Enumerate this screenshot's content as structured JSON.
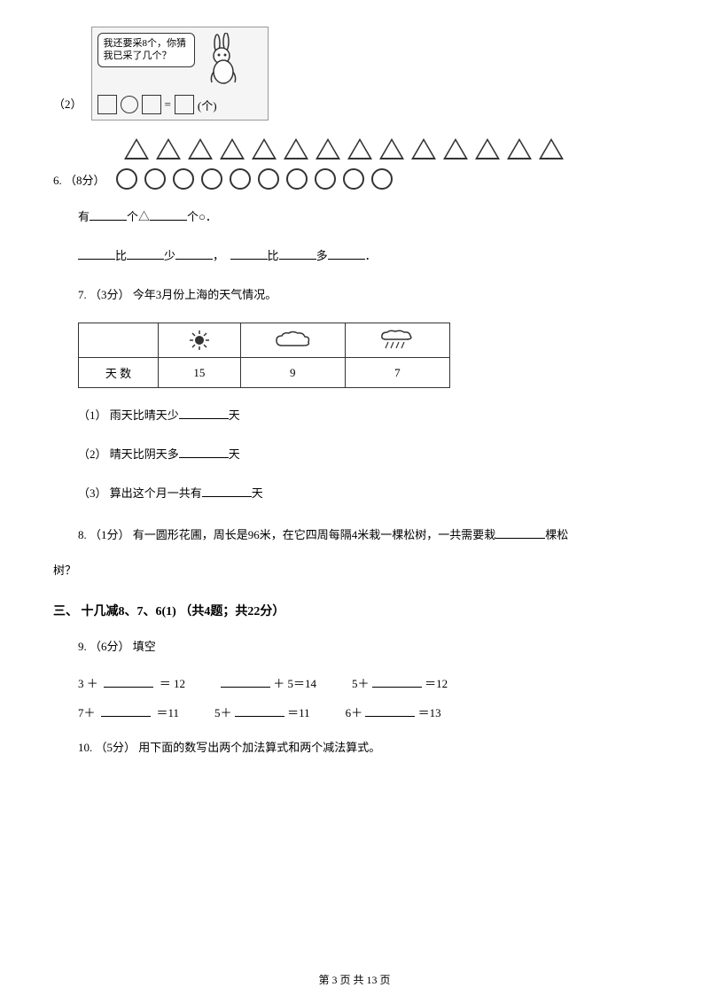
{
  "q2": {
    "label": "（2）",
    "speech": "我还要采8个，你猜我已采了几个？",
    "unit": "(个)"
  },
  "q6": {
    "prefix": "6. （8分）",
    "triangles_count": 14,
    "circles_count": 10,
    "line1_a": "有",
    "line1_b": "个△",
    "line1_c": "个○．",
    "line2_a": "比",
    "line2_b": "少",
    "line2_c": "，",
    "line2_d": "比",
    "line2_e": "多",
    "line2_f": "．"
  },
  "q7": {
    "prefix": "7. （3分） 今年3月份上海的天气情况。",
    "row_label": "天 数",
    "sunny": "15",
    "cloudy": "9",
    "rainy": "7",
    "sub1": "（1） 雨天比晴天少",
    "sub1_suffix": "天",
    "sub2": "（2） 晴天比阴天多",
    "sub2_suffix": "天",
    "sub3": "（3） 算出这个月一共有",
    "sub3_suffix": "天"
  },
  "q8": {
    "text_a": "8. （1分） 有一圆形花圃，周长是96米，在它四周每隔4米栽一棵松树，一共需要栽",
    "text_b": "棵松",
    "text_c": "树？"
  },
  "section3": "三、 十几减8、7、6(1) （共4题；共22分）",
  "q9": {
    "prefix": "9. （6分） 填空",
    "r1a_l": "3 ＋",
    "r1a_r": "＝ 12",
    "r1b_r": "＋ 5＝14",
    "r1c_l": "5＋",
    "r1c_r": "＝12",
    "r2a_l": "7＋",
    "r2a_r": "＝11",
    "r2b_l": "5＋",
    "r2b_r": "＝11",
    "r2c_l": "6＋",
    "r2c_r": "＝13"
  },
  "q10": "10. （5分） 用下面的数写出两个加法算式和两个减法算式。",
  "footer": "第 3 页 共 13 页",
  "colors": {
    "text": "#000000",
    "border": "#333333",
    "bg": "#ffffff",
    "box_bg": "#f5f5f5"
  }
}
